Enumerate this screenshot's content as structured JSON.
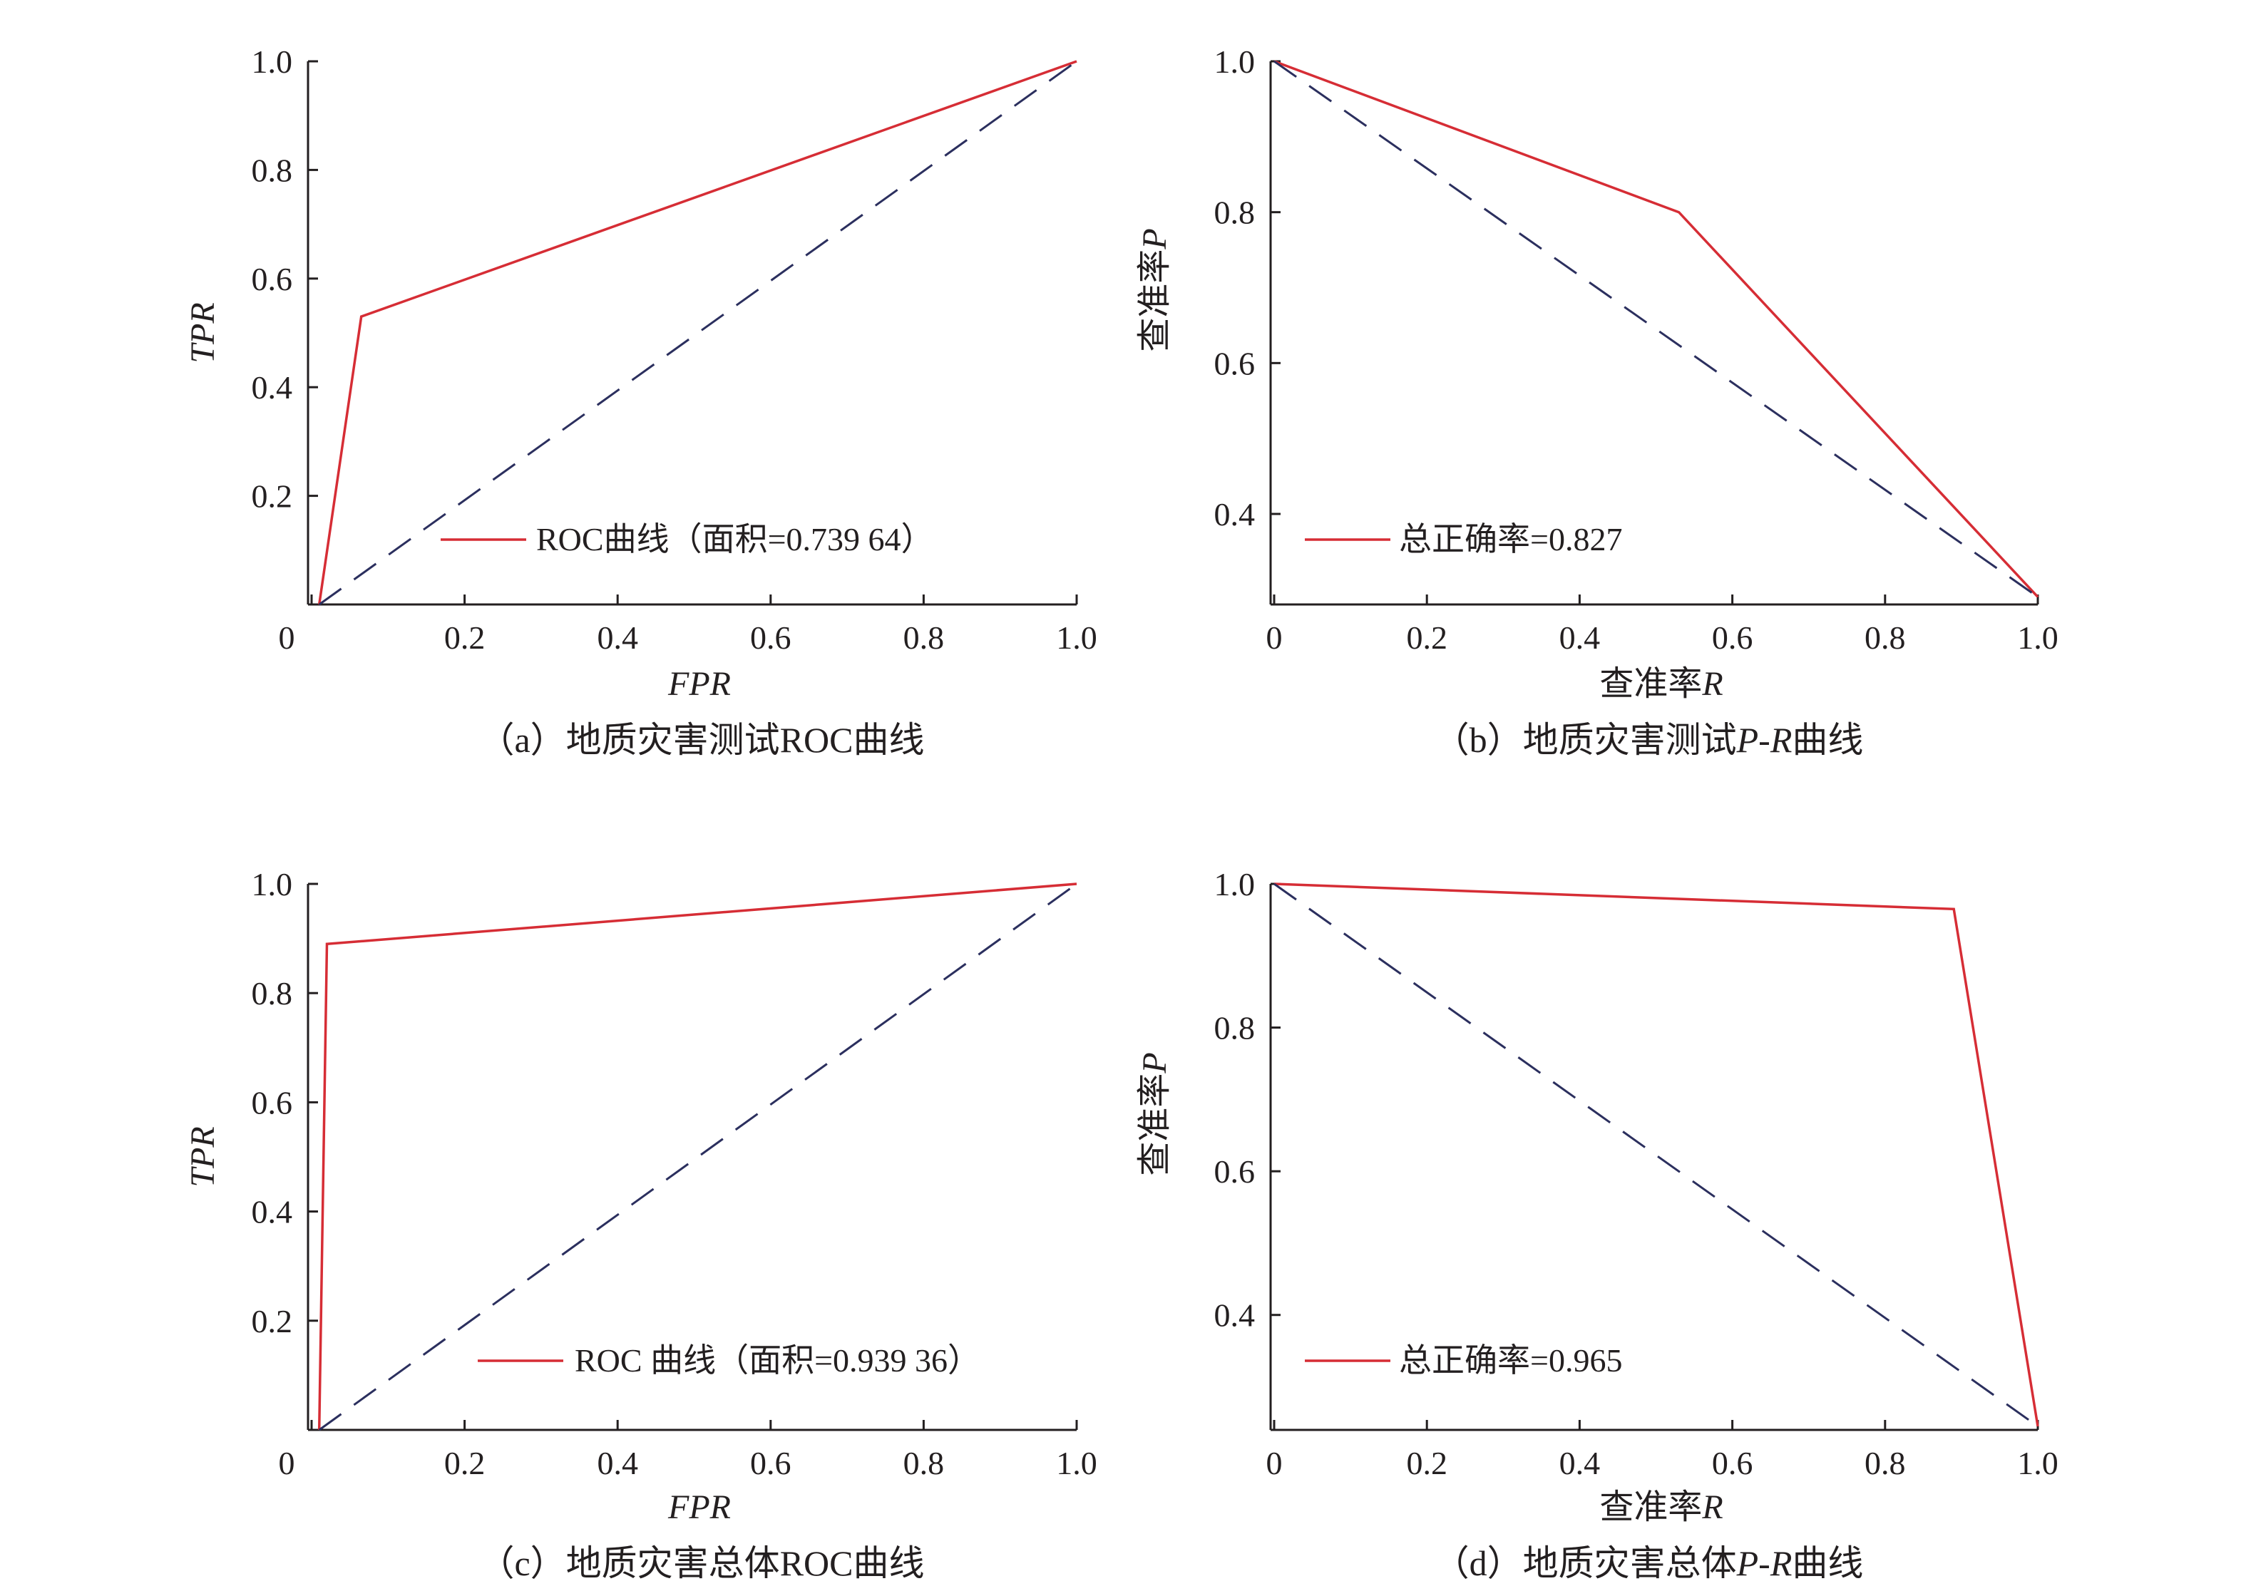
{
  "colors": {
    "curve": "#d62d35",
    "diagonal": "#2b2f5e",
    "axis": "#231f20",
    "text": "#231f20"
  },
  "chart_data": [
    {
      "id": "a",
      "type": "line",
      "caption_prefix": "（a）地质灾害测试",
      "caption_suffix": "ROC曲线",
      "xlabel": "FPR",
      "xlabel_italic": true,
      "ylabel": "TPR",
      "ylabel_italic": true,
      "xlim": [
        0,
        1.0
      ],
      "ylim": [
        0,
        1.0
      ],
      "xticks": [
        {
          "v": 0,
          "label": "0"
        },
        {
          "v": 0.2,
          "label": "0.2"
        },
        {
          "v": 0.4,
          "label": "0.4"
        },
        {
          "v": 0.6,
          "label": "0.6"
        },
        {
          "v": 0.8,
          "label": "0.8"
        },
        {
          "v": 1.0,
          "label": "1.0"
        }
      ],
      "yticks": [
        {
          "v": 0.2,
          "label": "0.2"
        },
        {
          "v": 0.4,
          "label": "0.4"
        },
        {
          "v": 0.6,
          "label": "0.6"
        },
        {
          "v": 0.8,
          "label": "0.8"
        },
        {
          "v": 1.0,
          "label": "1.0"
        }
      ],
      "series": [
        {
          "name": "ROC曲线（面积=0.739 64）",
          "x": [
            0.01,
            0.065,
            1.0
          ],
          "y": [
            0,
            0.53,
            1.0
          ]
        },
        {
          "name": "",
          "style": "dashed",
          "x": [
            0.01,
            1.0
          ],
          "y": [
            0,
            1.0
          ]
        }
      ],
      "legend": "bottom-right",
      "grid": false
    },
    {
      "id": "b",
      "type": "line",
      "caption_prefix": "（b）地质灾害测试",
      "caption_suffix": "曲线",
      "caption_italic": "P-R",
      "xlabel": "查准率",
      "xlabel_var": "R",
      "ylabel": "查准率",
      "ylabel_var": "P",
      "xlim": [
        0,
        1.0
      ],
      "ylim": [
        0.28,
        1.0
      ],
      "xticks": [
        {
          "v": 0,
          "label": "0"
        },
        {
          "v": 0.2,
          "label": "0.2"
        },
        {
          "v": 0.4,
          "label": "0.4"
        },
        {
          "v": 0.6,
          "label": "0.6"
        },
        {
          "v": 0.8,
          "label": "0.8"
        },
        {
          "v": 1.0,
          "label": "1.0"
        }
      ],
      "yticks": [
        {
          "v": 0.4,
          "label": "0.4"
        },
        {
          "v": 0.6,
          "label": "0.6"
        },
        {
          "v": 0.8,
          "label": "0.8"
        },
        {
          "v": 1.0,
          "label": "1.0"
        }
      ],
      "series": [
        {
          "name": "总正确率=0.827",
          "x": [
            0,
            0.53,
            1.0
          ],
          "y": [
            1.0,
            0.8,
            0.29
          ]
        },
        {
          "name": "",
          "style": "dashed",
          "x": [
            0,
            1.0
          ],
          "y": [
            1.0,
            0.29
          ]
        }
      ],
      "legend": "bottom-left",
      "grid": false
    },
    {
      "id": "c",
      "type": "line",
      "caption_prefix": "（c）地质灾害总体",
      "caption_suffix": "ROC曲线",
      "xlabel": "FPR",
      "xlabel_italic": true,
      "ylabel": "TPR",
      "ylabel_italic": true,
      "xlim": [
        0,
        1.0
      ],
      "ylim": [
        0,
        1.0
      ],
      "xticks": [
        {
          "v": 0,
          "label": "0"
        },
        {
          "v": 0.2,
          "label": "0.2"
        },
        {
          "v": 0.4,
          "label": "0.4"
        },
        {
          "v": 0.6,
          "label": "0.6"
        },
        {
          "v": 0.8,
          "label": "0.8"
        },
        {
          "v": 1.0,
          "label": "1.0"
        }
      ],
      "yticks": [
        {
          "v": 0.2,
          "label": "0.2"
        },
        {
          "v": 0.4,
          "label": "0.4"
        },
        {
          "v": 0.6,
          "label": "0.6"
        },
        {
          "v": 0.8,
          "label": "0.8"
        },
        {
          "v": 1.0,
          "label": "1.0"
        }
      ],
      "series": [
        {
          "name": "ROC 曲线（面积=0.939 36）",
          "x": [
            0.01,
            0.02,
            1.0
          ],
          "y": [
            0,
            0.89,
            1.0
          ]
        },
        {
          "name": "",
          "style": "dashed",
          "x": [
            0.01,
            1.0
          ],
          "y": [
            0,
            1.0
          ]
        }
      ],
      "legend": "bottom-right",
      "grid": false
    },
    {
      "id": "d",
      "type": "line",
      "caption_prefix": "（d）地质灾害总体",
      "caption_suffix": "曲线",
      "caption_italic": "P-R",
      "xlabel": "查准率",
      "xlabel_var": "R",
      "ylabel": "查准率",
      "ylabel_var": "P",
      "xlim": [
        0,
        1.0
      ],
      "ylim": [
        0.24,
        1.0
      ],
      "xticks": [
        {
          "v": 0,
          "label": "0"
        },
        {
          "v": 0.2,
          "label": "0.2"
        },
        {
          "v": 0.4,
          "label": "0.4"
        },
        {
          "v": 0.6,
          "label": "0.6"
        },
        {
          "v": 0.8,
          "label": "0.8"
        },
        {
          "v": 1.0,
          "label": "1.0"
        }
      ],
      "yticks": [
        {
          "v": 0.4,
          "label": "0.4"
        },
        {
          "v": 0.6,
          "label": "0.6"
        },
        {
          "v": 0.8,
          "label": "0.8"
        },
        {
          "v": 1.0,
          "label": "1.0"
        }
      ],
      "series": [
        {
          "name": "总正确率=0.965",
          "x": [
            0,
            0.89,
            1.0
          ],
          "y": [
            1.0,
            0.965,
            0.245
          ]
        },
        {
          "name": "",
          "style": "dashed",
          "x": [
            0,
            1.0
          ],
          "y": [
            1.0,
            0.245
          ]
        }
      ],
      "legend": "bottom-left",
      "grid": false
    }
  ]
}
